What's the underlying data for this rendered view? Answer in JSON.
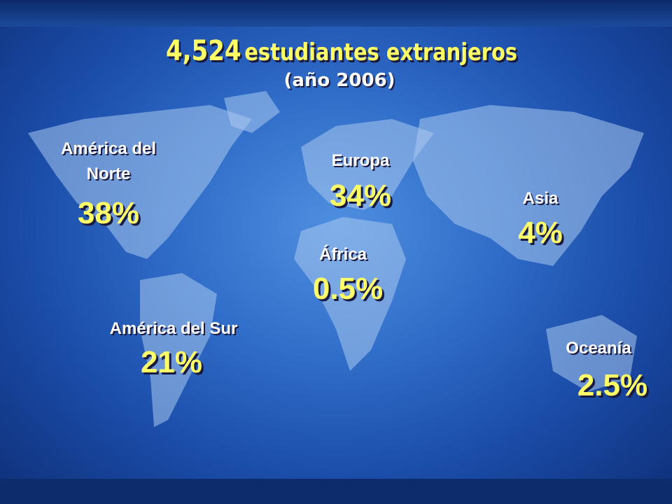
{
  "title": {
    "number": "4,524",
    "text": "estudiantes extranjeros",
    "subtitle": "(año 2006)"
  },
  "regions": [
    {
      "name": "América del Norte",
      "share": "38%"
    },
    {
      "name": "Europa",
      "share": "34%"
    },
    {
      "name": "Asia",
      "share": "4%"
    },
    {
      "name": "África",
      "share": "0.5%"
    },
    {
      "name": "América del Sur",
      "share": "21%"
    },
    {
      "name": "Oceanía",
      "share": "2.5%"
    }
  ]
}
